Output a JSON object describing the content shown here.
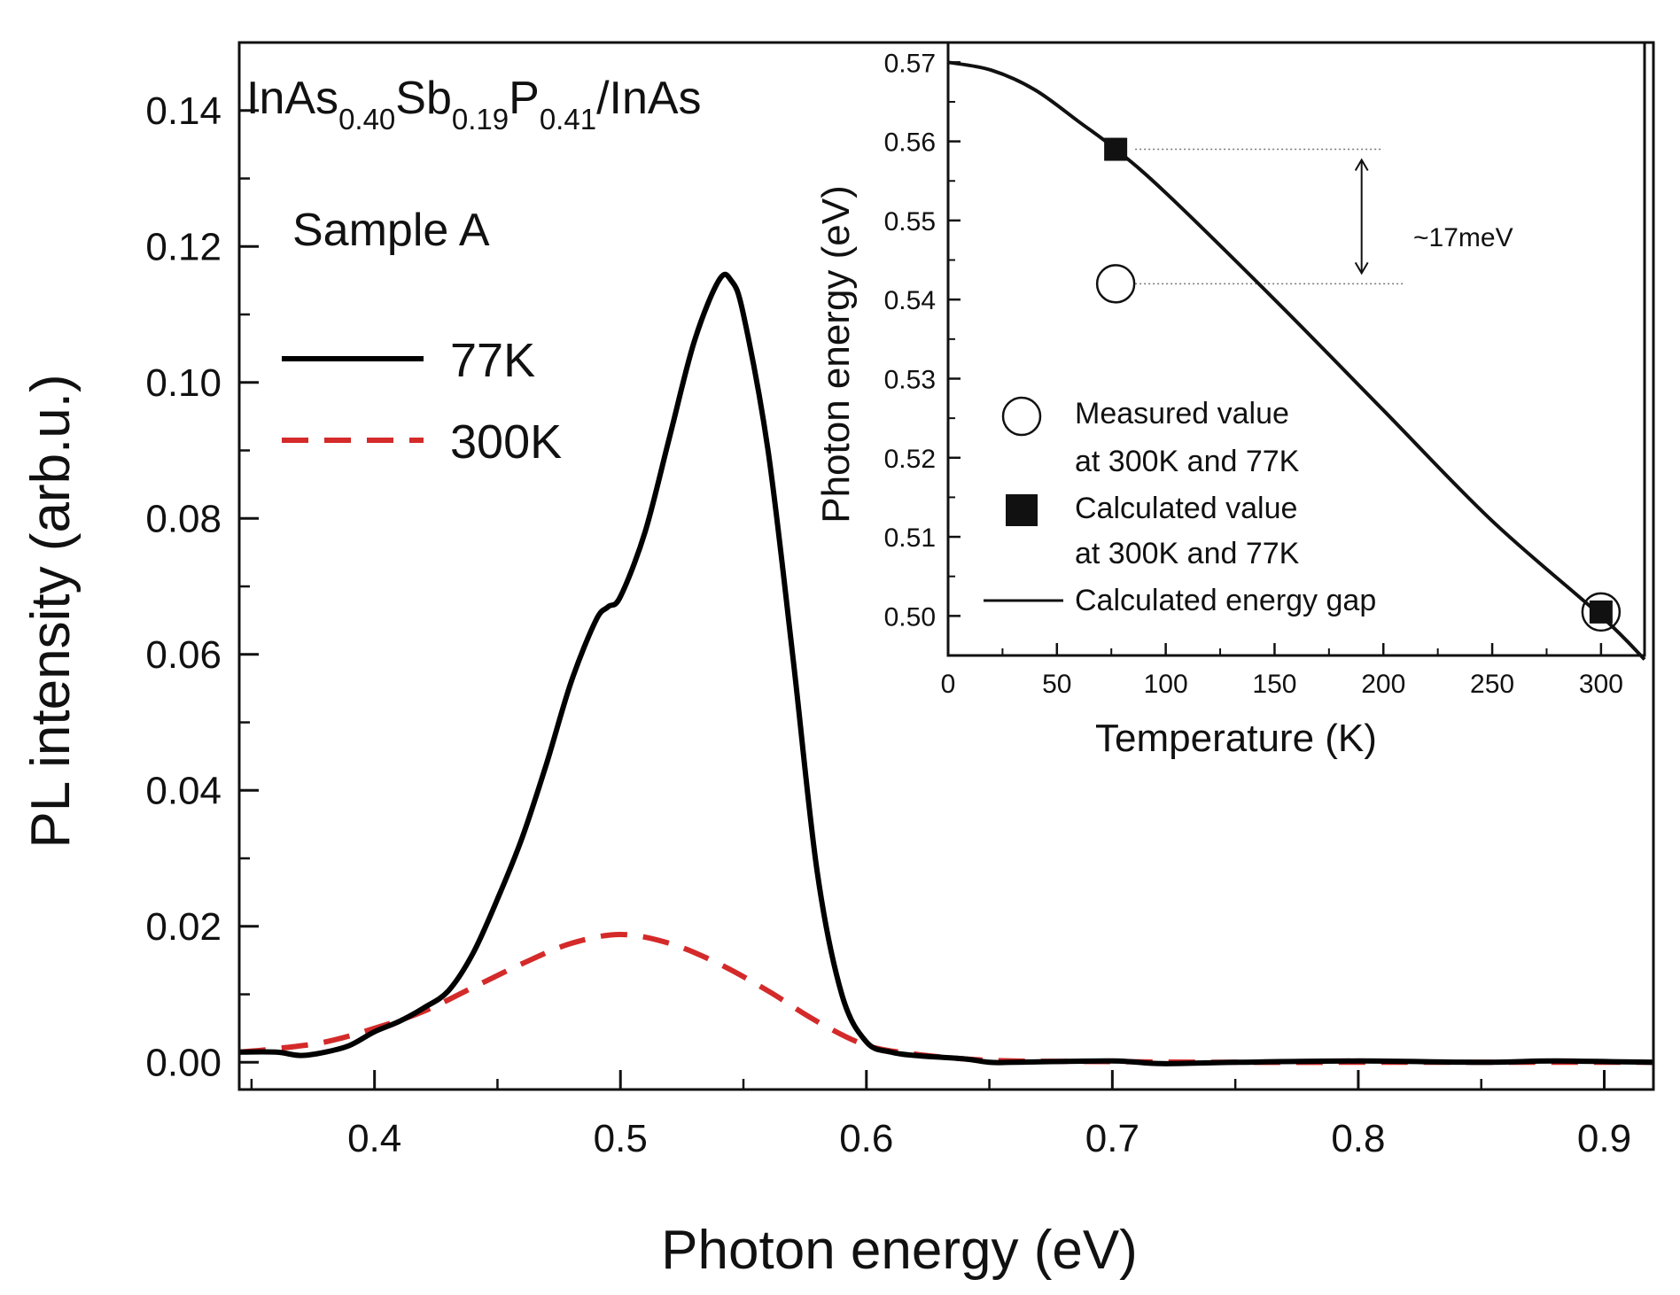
{
  "chart_data": [
    {
      "type": "line",
      "panel": "main",
      "xlabel": "Photon energy (eV)",
      "ylabel": "PL intensity (arb.u.)",
      "xlim": [
        0.345,
        0.92
      ],
      "ylim": [
        -0.004,
        0.15
      ],
      "xticks": [
        0.4,
        0.5,
        0.6,
        0.7,
        0.8,
        0.9
      ],
      "xtick_labels": [
        "0.4",
        "0.5",
        "0.6",
        "0.7",
        "0.8",
        "0.9"
      ],
      "yticks": [
        0.0,
        0.02,
        0.04,
        0.06,
        0.08,
        0.1,
        0.12,
        0.14
      ],
      "ytick_labels": [
        "0.00",
        "0.02",
        "0.04",
        "0.06",
        "0.08",
        "0.10",
        "0.12",
        "0.14"
      ],
      "material": {
        "parts": [
          {
            "text": "InAs",
            "sub": false
          },
          {
            "text": "0.40",
            "sub": true
          },
          {
            "text": "Sb",
            "sub": false
          },
          {
            "text": "0.19",
            "sub": true
          },
          {
            "text": "P",
            "sub": false
          },
          {
            "text": "0.41",
            "sub": true
          },
          {
            "text": "/InAs",
            "sub": false
          }
        ]
      },
      "sample_label": "Sample A",
      "legend": [
        {
          "label": "77K",
          "style": "solid",
          "color": "#000000"
        },
        {
          "label": "300K",
          "style": "dashed",
          "color": "#d42a2a"
        }
      ],
      "series": [
        {
          "name": "77K",
          "color": "#000000",
          "style": "solid",
          "x": [
            0.345,
            0.36,
            0.37,
            0.38,
            0.39,
            0.4,
            0.41,
            0.42,
            0.43,
            0.44,
            0.45,
            0.46,
            0.47,
            0.48,
            0.49,
            0.495,
            0.5,
            0.51,
            0.52,
            0.53,
            0.54,
            0.545,
            0.55,
            0.56,
            0.57,
            0.58,
            0.59,
            0.6,
            0.61,
            0.62,
            0.64,
            0.65,
            0.66,
            0.7,
            0.72,
            0.75,
            0.8,
            0.85,
            0.88,
            0.92
          ],
          "y": [
            0.0015,
            0.0015,
            0.001,
            0.0015,
            0.0025,
            0.0045,
            0.006,
            0.008,
            0.0105,
            0.016,
            0.024,
            0.033,
            0.044,
            0.056,
            0.065,
            0.067,
            0.0685,
            0.078,
            0.092,
            0.106,
            0.115,
            0.115,
            0.11,
            0.09,
            0.06,
            0.028,
            0.01,
            0.003,
            0.0015,
            0.001,
            0.0005,
            0.0,
            0.0,
            0.0002,
            -0.0002,
            0.0,
            0.0002,
            0.0,
            0.0002,
            0.0
          ]
        },
        {
          "name": "300K",
          "color": "#d42a2a",
          "style": "dashed",
          "x": [
            0.345,
            0.36,
            0.38,
            0.4,
            0.42,
            0.44,
            0.46,
            0.48,
            0.5,
            0.52,
            0.54,
            0.56,
            0.58,
            0.6,
            0.62,
            0.64,
            0.66,
            0.7,
            0.75,
            0.8,
            0.85,
            0.92
          ],
          "y": [
            0.0015,
            0.002,
            0.003,
            0.005,
            0.0075,
            0.011,
            0.0145,
            0.0175,
            0.0188,
            0.0175,
            0.0145,
            0.0105,
            0.006,
            0.0025,
            0.0012,
            0.0005,
            0.0002,
            0.0001,
            0.0,
            0.0,
            0.0,
            0.0
          ]
        }
      ]
    },
    {
      "type": "line",
      "panel": "inset",
      "xlabel": "Temperature (K)",
      "ylabel": "Photon energy (eV)",
      "xlim": [
        0,
        320
      ],
      "ylim": [
        0.495,
        0.5725
      ],
      "xticks": [
        0,
        50,
        100,
        150,
        200,
        250,
        300
      ],
      "xtick_labels": [
        "0",
        "50",
        "100",
        "150",
        "200",
        "250",
        "300"
      ],
      "yticks": [
        0.5,
        0.51,
        0.52,
        0.53,
        0.54,
        0.55,
        0.56,
        0.57
      ],
      "ytick_labels": [
        "0.50",
        "0.51",
        "0.52",
        "0.53",
        "0.54",
        "0.55",
        "0.56",
        "0.57"
      ],
      "series": [
        {
          "name": "Calculated energy gap",
          "color": "#000000",
          "style": "solid",
          "x": [
            0,
            20,
            40,
            60,
            77,
            100,
            150,
            200,
            250,
            300,
            320
          ],
          "y": [
            0.57,
            0.569,
            0.5665,
            0.5625,
            0.559,
            0.5535,
            0.54,
            0.526,
            0.512,
            0.5,
            0.4945
          ]
        },
        {
          "name": "Measured value at 300K and 77K",
          "marker": "open-circle",
          "x": [
            77,
            300
          ],
          "y": [
            0.542,
            0.5005
          ]
        },
        {
          "name": "Calculated value at 300K and 77K",
          "marker": "filled-square",
          "x": [
            77,
            300
          ],
          "y": [
            0.559,
            0.5005
          ]
        }
      ],
      "legend": [
        {
          "lines": [
            "Measured value",
            "at 300K and 77K"
          ],
          "marker": "open-circle"
        },
        {
          "lines": [
            "Calculated value",
            "at 300K and 77K"
          ],
          "marker": "filled-square"
        },
        {
          "lines": [
            "Calculated energy gap"
          ],
          "marker": "line"
        }
      ],
      "annotation": {
        "text": "~17meV",
        "from": 0.559,
        "to": 0.542
      }
    }
  ]
}
